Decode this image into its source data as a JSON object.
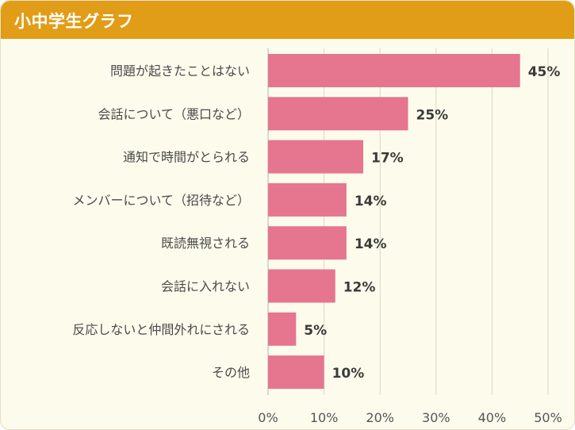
{
  "header": {
    "title": "小中学生グラフ"
  },
  "colors": {
    "header_bg": "#e19d17",
    "card_bg": "#fdfbec",
    "bar": "#e6758f",
    "grid": "#d9d6c6"
  },
  "chart_data": {
    "type": "bar",
    "orientation": "horizontal",
    "title": "小中学生グラフ",
    "categories": [
      "問題が起きたことはない",
      "会話について（悪口など）",
      "通知で時間がとられる",
      "メンバーについて（招待など）",
      "既読無視される",
      "会話に入れない",
      "反応しないと仲間外れにされる",
      "その他"
    ],
    "values": [
      45,
      25,
      17,
      14,
      14,
      12,
      5,
      10
    ],
    "value_labels": [
      "45%",
      "25%",
      "17%",
      "14%",
      "14%",
      "12%",
      "5%",
      "10%"
    ],
    "xlim": [
      0,
      50
    ],
    "xticks": [
      0,
      10,
      20,
      30,
      40,
      50
    ],
    "xtick_labels": [
      "0%",
      "10%",
      "20%",
      "30%",
      "40%",
      "50%"
    ],
    "xlabel": "",
    "ylabel": "",
    "grid": true
  }
}
